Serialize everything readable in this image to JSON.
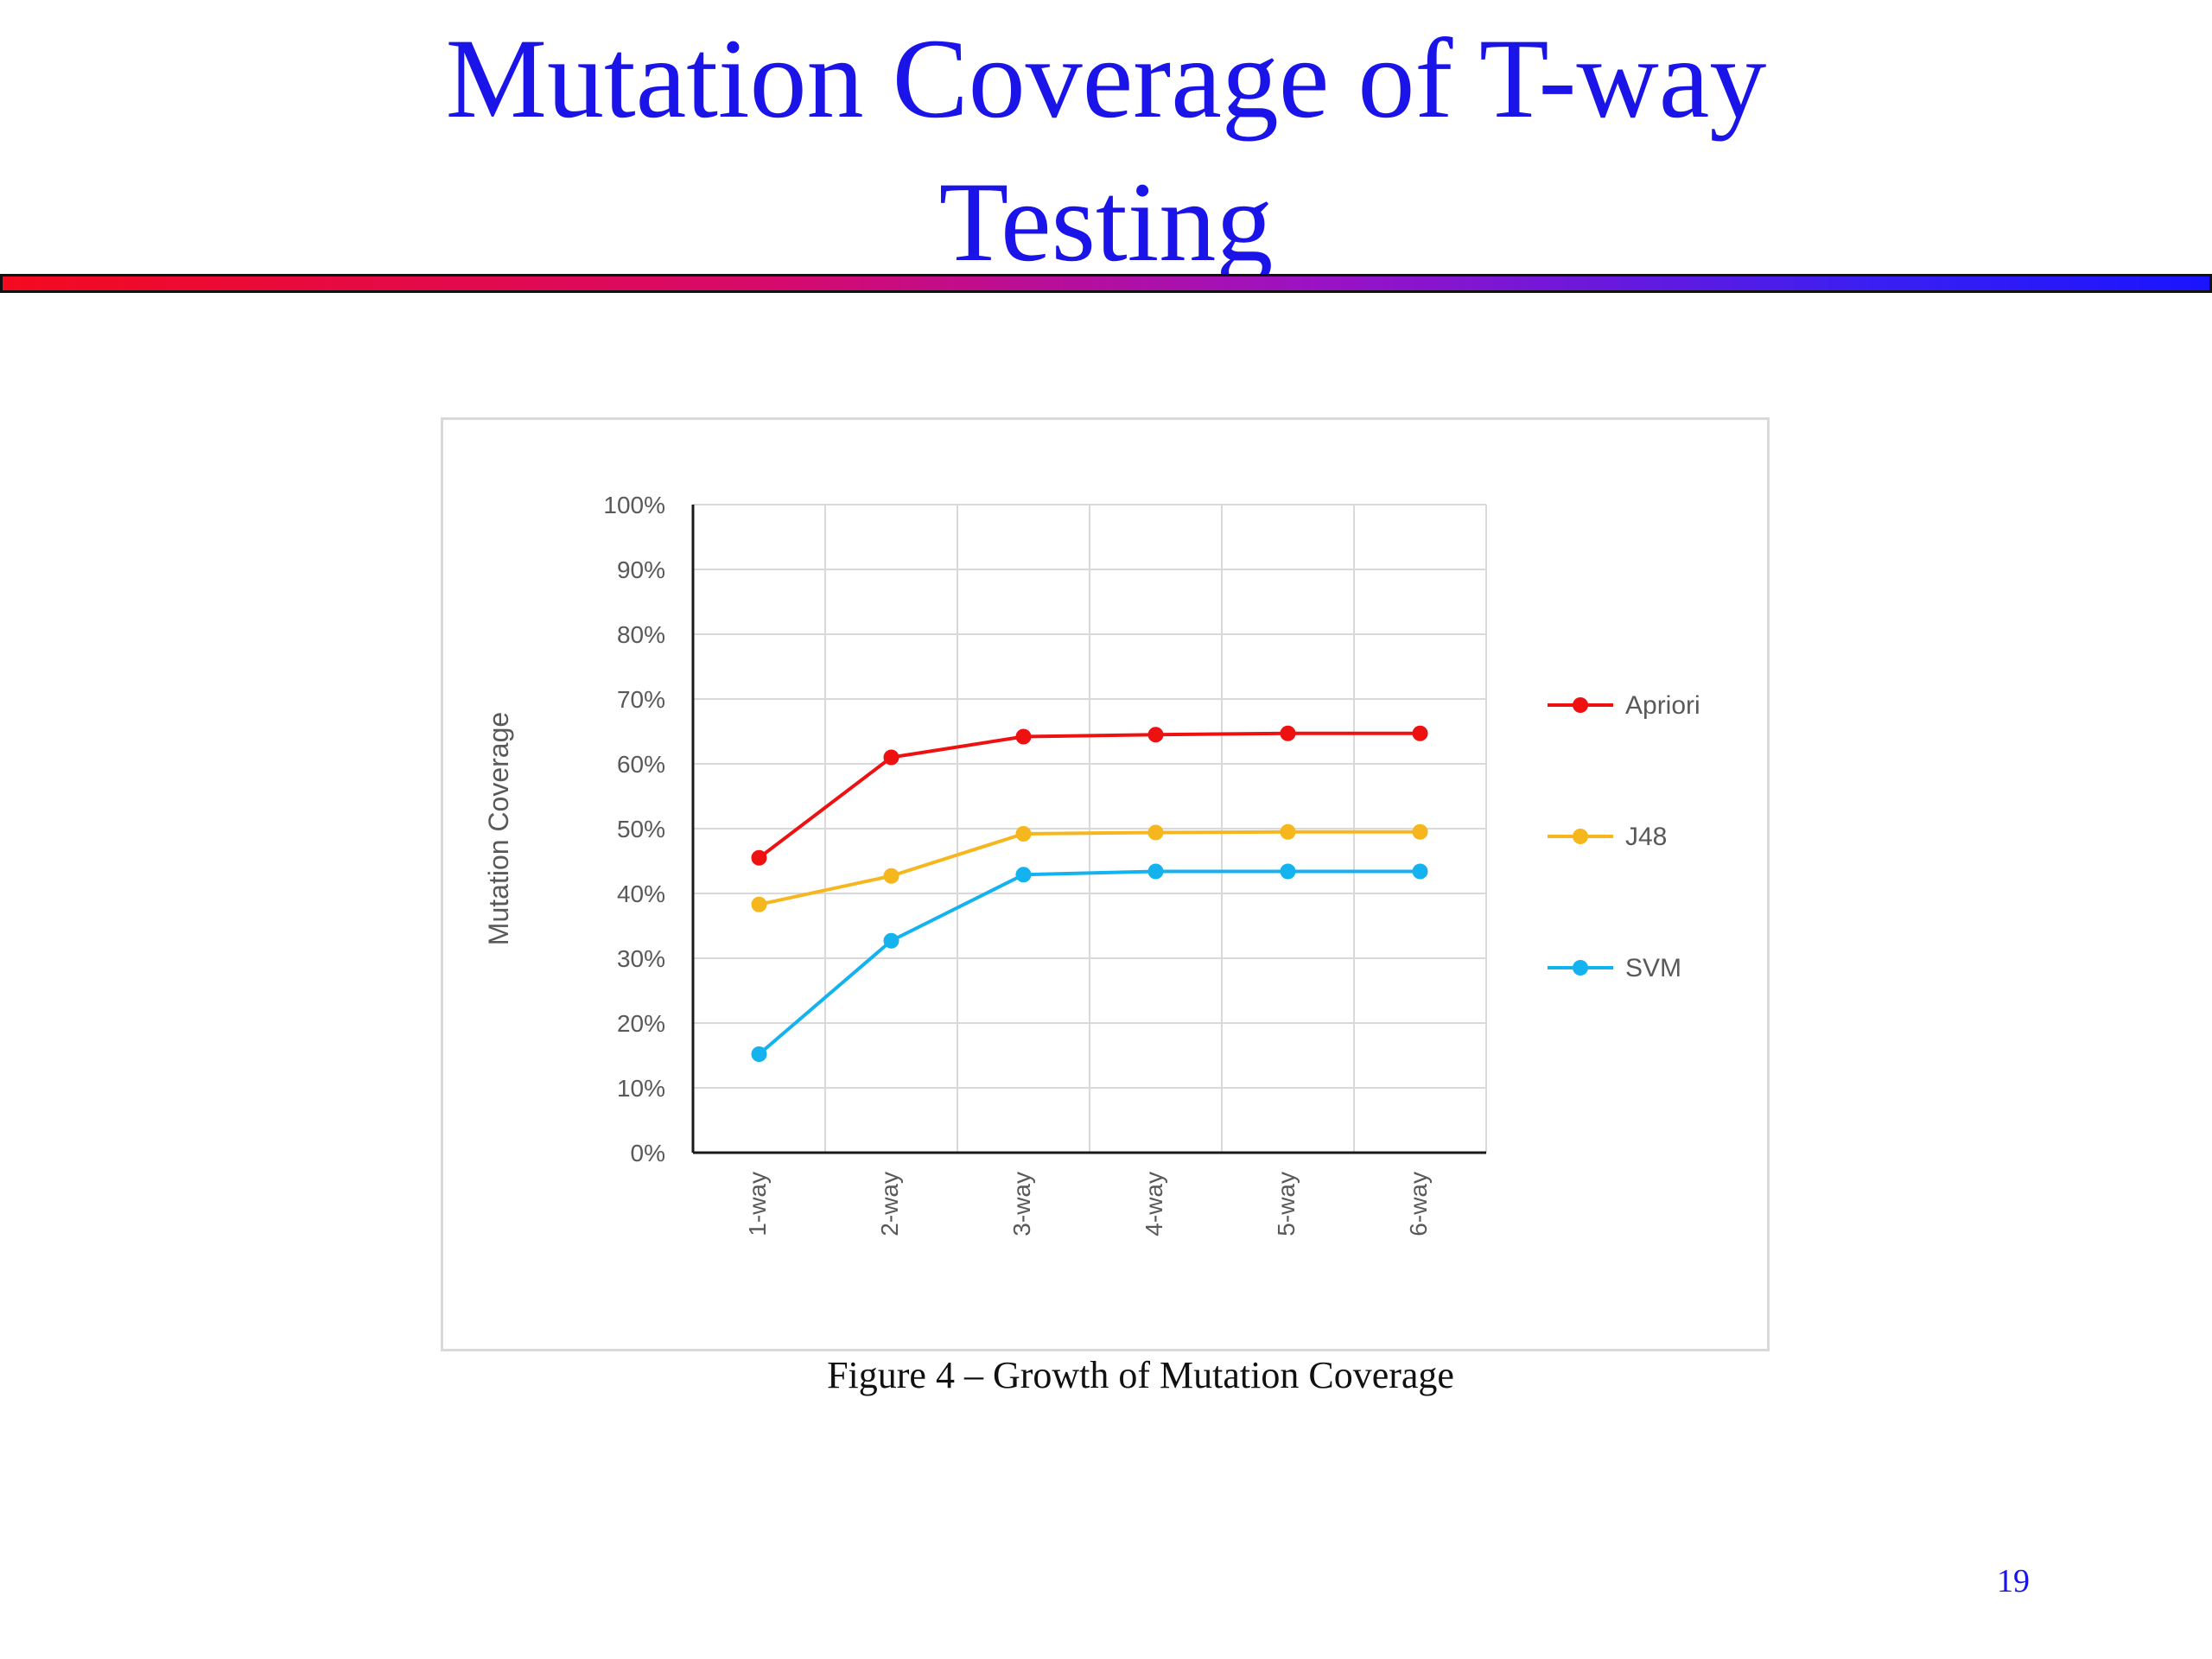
{
  "slide": {
    "title_lines": [
      "Mutation Coverage of T-way",
      "Testing"
    ],
    "caption": "Figure 4 – Growth of Mutation Coverage",
    "page_number": "19",
    "title_color": "#1a14e8"
  },
  "chart_data": {
    "type": "line",
    "title": "",
    "xlabel": "",
    "ylabel": "Mutation Coverage",
    "categories": [
      "1-way",
      "2-way",
      "3-way",
      "4-way",
      "5-way",
      "6-way"
    ],
    "y_ticks": [
      "0%",
      "10%",
      "20%",
      "30%",
      "40%",
      "50%",
      "60%",
      "70%",
      "80%",
      "90%",
      "100%"
    ],
    "ylim": [
      0,
      100
    ],
    "grid": true,
    "legend_position": "right",
    "series": [
      {
        "name": "Apriori",
        "color": "#ee1111",
        "values": [
          45.5,
          61,
          64.2,
          64.5,
          64.7,
          64.7
        ]
      },
      {
        "name": "J48",
        "color": "#f5b71d",
        "values": [
          38.3,
          42.7,
          49.2,
          49.4,
          49.5,
          49.5
        ]
      },
      {
        "name": "SVM",
        "color": "#14b2ee",
        "values": [
          15.2,
          32.7,
          42.9,
          43.4,
          43.4,
          43.4
        ]
      }
    ]
  }
}
